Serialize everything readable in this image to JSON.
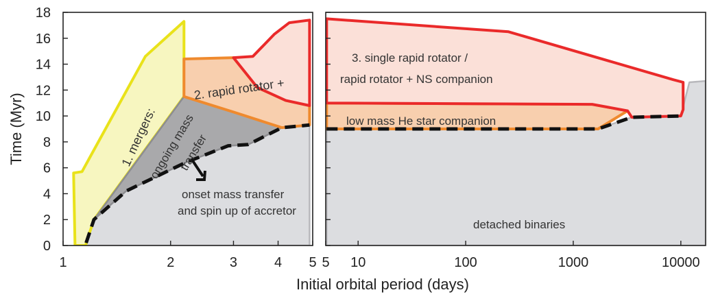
{
  "chart_data": {
    "type": "area",
    "title": "",
    "xlabel": "Initial orbital period (days)",
    "ylabel": "Time (Myr)",
    "ylim": [
      0,
      18
    ],
    "y_ticks": [
      0,
      2,
      4,
      6,
      8,
      10,
      12,
      14,
      16,
      18
    ],
    "grid": false,
    "panels": [
      {
        "name": "left",
        "x_scale": "log",
        "xlim": [
          1,
          5
        ],
        "x_ticks": [
          1,
          2,
          3,
          4,
          5
        ]
      },
      {
        "name": "right",
        "x_scale": "log",
        "xlim": [
          5,
          17000
        ],
        "x_ticks": [
          5,
          10,
          100,
          1000,
          10000
        ]
      }
    ],
    "regions": [
      {
        "label": "detached binaries",
        "fill": "#dcdde0",
        "edge": "#b8b8bc",
        "panel": "left",
        "points": [
          [
            1.16,
            0
          ],
          [
            1.16,
            0.2
          ],
          [
            1.22,
            2.0
          ],
          [
            1.5,
            4.2
          ],
          [
            2.2,
            6.4
          ],
          [
            2.9,
            7.7
          ],
          [
            3.3,
            7.8
          ],
          [
            4.1,
            9.1
          ],
          [
            4.5,
            9.2
          ],
          [
            4.9,
            9.3
          ],
          [
            4.9,
            0
          ]
        ]
      },
      {
        "label": "detached binaries",
        "fill": "#dcdde0",
        "edge": "#b8b8bc",
        "panel": "right",
        "points": [
          [
            5.1,
            0
          ],
          [
            5.1,
            9.0
          ],
          [
            1700,
            9.0
          ],
          [
            3500,
            9.9
          ],
          [
            10000,
            10.0
          ],
          [
            12000,
            12.6
          ],
          [
            17000,
            12.7
          ],
          [
            17000,
            0
          ]
        ]
      },
      {
        "label": "1. mergers:",
        "fill": "#f7f6c0",
        "edge": "#e9e21a",
        "panel": "left",
        "points": [
          [
            1.08,
            0
          ],
          [
            1.07,
            5.6
          ],
          [
            1.13,
            5.7
          ],
          [
            1.7,
            14.6
          ],
          [
            2.18,
            17.3
          ],
          [
            2.18,
            11.5
          ],
          [
            1.22,
            2.0
          ],
          [
            1.16,
            0.2
          ],
          [
            1.16,
            0
          ]
        ]
      },
      {
        "label": "ongoing mass transfer",
        "fill": "#a9a9ab",
        "edge": "#8d8d90",
        "panel": "left",
        "points": [
          [
            1.22,
            2.0
          ],
          [
            2.18,
            11.5
          ],
          [
            2.5,
            11.0
          ],
          [
            3.0,
            10.3
          ],
          [
            4.1,
            9.1
          ],
          [
            3.3,
            7.8
          ],
          [
            2.9,
            7.7
          ],
          [
            2.2,
            6.4
          ],
          [
            1.5,
            4.2
          ]
        ]
      },
      {
        "label": "2. rapid rotator + low mass He star companion",
        "fill": "#f8cfae",
        "edge": "#ef8a2e",
        "panel": "left",
        "points": [
          [
            2.18,
            11.5
          ],
          [
            2.18,
            14.4
          ],
          [
            3.0,
            14.5
          ],
          [
            3.5,
            12.2
          ],
          [
            4.2,
            11.2
          ],
          [
            4.9,
            10.8
          ],
          [
            4.9,
            9.3
          ],
          [
            4.1,
            9.1
          ],
          [
            3.0,
            10.3
          ]
        ]
      },
      {
        "label": "2. rapid rotator + low mass He star companion",
        "fill": "#f8cfae",
        "edge": "#ef8a2e",
        "panel": "right",
        "points": [
          [
            5.1,
            9.0
          ],
          [
            5.1,
            11.0
          ],
          [
            1500,
            10.9
          ],
          [
            3200,
            10.4
          ],
          [
            1700,
            9.0
          ]
        ]
      },
      {
        "label": "3. single rapid rotator / rapid rotator + NS companion",
        "fill": "#fbe0d8",
        "edge": "#ea2a2a",
        "panel": "left",
        "points": [
          [
            3.0,
            14.5
          ],
          [
            3.4,
            14.6
          ],
          [
            3.9,
            16.3
          ],
          [
            4.3,
            17.2
          ],
          [
            4.9,
            17.4
          ],
          [
            4.9,
            10.8
          ],
          [
            4.2,
            11.2
          ],
          [
            3.5,
            12.2
          ]
        ]
      },
      {
        "label": "3. single rapid rotator / rapid rotator + NS companion",
        "fill": "#fbe0d8",
        "edge": "#ea2a2a",
        "panel": "right",
        "points": [
          [
            5.1,
            11.0
          ],
          [
            5.1,
            17.5
          ],
          [
            250,
            16.5
          ],
          [
            8500,
            12.8
          ],
          [
            10500,
            12.6
          ],
          [
            10500,
            10.5
          ],
          [
            10000,
            10.0
          ],
          [
            3500,
            9.9
          ],
          [
            3200,
            10.4
          ],
          [
            1500,
            10.9
          ]
        ]
      }
    ],
    "dashed_line": {
      "label": "onset mass transfer and spin up of accretor",
      "color": "#111111",
      "left": [
        [
          1.16,
          0.2
        ],
        [
          1.22,
          2.0
        ],
        [
          1.5,
          4.2
        ],
        [
          2.2,
          6.4
        ],
        [
          2.9,
          7.7
        ],
        [
          3.3,
          7.8
        ],
        [
          4.1,
          9.1
        ],
        [
          4.5,
          9.2
        ],
        [
          4.9,
          9.3
        ]
      ],
      "right": [
        [
          5.1,
          9.0
        ],
        [
          1700,
          9.0
        ],
        [
          3500,
          9.9
        ],
        [
          10000,
          10.0
        ]
      ]
    },
    "annotations": {
      "mergers": "1. mergers:",
      "ongoing_line1": "ongoing mass",
      "ongoing_line2": "transfer",
      "onset_line1": "onset mass transfer",
      "onset_line2": "and spin up of accretor",
      "rapid_rotator": "2. rapid rotator +",
      "he_companion": "low mass He star companion",
      "single_line1": "3. single rapid rotator /",
      "single_line2": "rapid rotator + NS companion",
      "detached": "detached binaries"
    },
    "colors": {
      "mergers": "#e9e21a",
      "rapid_rotator": "#ef8a2e",
      "single_rotator": "#ea2a2a",
      "ongoing": "#a9a9ab",
      "detached": "#dcdde0"
    }
  }
}
